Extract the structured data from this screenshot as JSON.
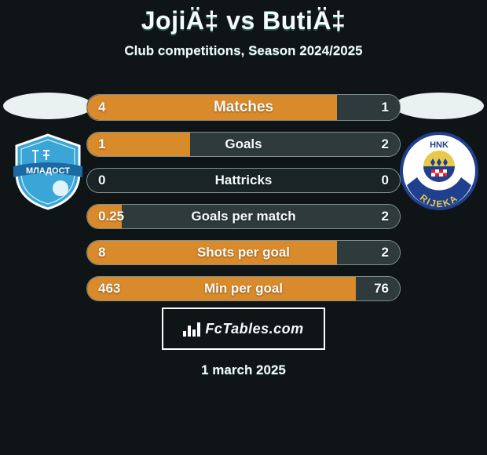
{
  "colors": {
    "background": "#0f1416",
    "text": "#f5fbfa",
    "text_shadow": "#2a5a55",
    "ellipse": "#e9f2f0",
    "bar_border": "#7e8f8c",
    "bar_bg": "#1a2326",
    "left_fill": "#d98a2b",
    "right_fill": "#2f3a3d"
  },
  "header": {
    "title": "JojiÄ‡ vs ButiÄ‡",
    "subtitle": "Club competitions, Season 2024/2025"
  },
  "footer": {
    "date": "1 march 2025",
    "watermark_text": "FcTables.com"
  },
  "badges": {
    "left": {
      "shield_fill": "#3aa6d8",
      "shield_stroke": "#ffffff",
      "banner_fill": "#1b6aa3",
      "banner_text": "МЛАДОСТ",
      "banner_text_color": "#ffffff"
    },
    "right": {
      "circle_stroke_outer": "#1f3f8f",
      "circle_fill": "#ffffff",
      "top_text": "HNK",
      "top_text_color": "#1f3f8f",
      "bottom_arc_fill": "#1f3f8f",
      "bottom_text": "RIJEKA",
      "bottom_text_color": "#e7c94b",
      "inner_top": "#e7c94b",
      "inner_bottom": "#1f3f8f"
    }
  },
  "bars": {
    "label_fontsize_first": 19,
    "label_fontsize": 17,
    "value_fontsize": 17,
    "rows": [
      {
        "label": "Matches",
        "left_val": "4",
        "right_val": "1",
        "left_pct": 80,
        "right_pct": 20
      },
      {
        "label": "Goals",
        "left_val": "1",
        "right_val": "2",
        "left_pct": 33,
        "right_pct": 67
      },
      {
        "label": "Hattricks",
        "left_val": "0",
        "right_val": "0",
        "left_pct": 0,
        "right_pct": 0
      },
      {
        "label": "Goals per match",
        "left_val": "0.25",
        "right_val": "2",
        "left_pct": 11,
        "right_pct": 89
      },
      {
        "label": "Shots per goal",
        "left_val": "8",
        "right_val": "2",
        "left_pct": 80,
        "right_pct": 20
      },
      {
        "label": "Min per goal",
        "left_val": "463",
        "right_val": "76",
        "left_pct": 86,
        "right_pct": 14
      }
    ]
  }
}
